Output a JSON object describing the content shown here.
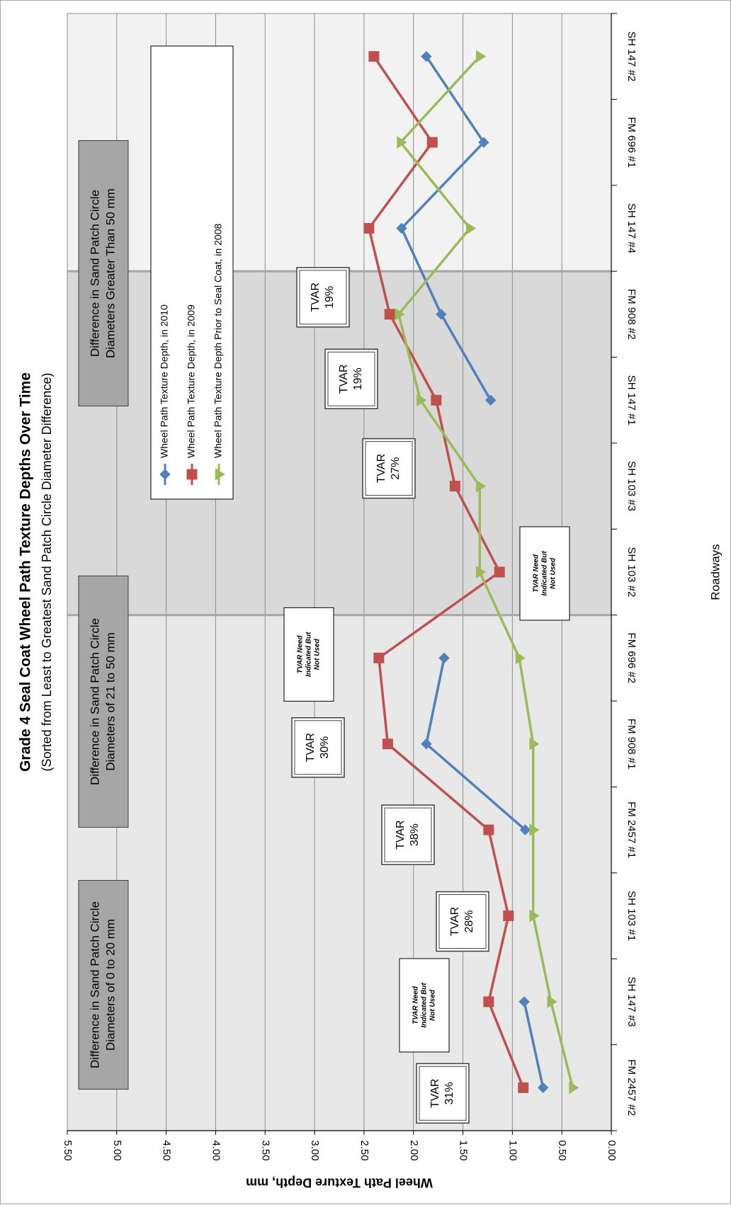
{
  "chart_data": {
    "type": "line",
    "title": "Grade 4 Seal Coat Wheel Path Texture Depths Over Time",
    "subtitle": "(Sorted from Least to Greatest Sand Patch Circle Diameter Difference)",
    "xlabel": "Roadways",
    "ylabel": "Wheel Path Texture Depth, mm",
    "ylim": [
      0,
      5.5
    ],
    "yticks": [
      "0.00",
      "0.50",
      "1.00",
      "1.50",
      "2.00",
      "2.50",
      "3.00",
      "3.50",
      "4.00",
      "4.50",
      "5.00",
      "5.50"
    ],
    "grid": true,
    "legend_position": "top-right",
    "orientation": "rotated 90 degrees clockwise",
    "categories": [
      "SH 147 #2",
      "FM 696 #1",
      "SH 147 #4",
      "FM 908 #2",
      "SH 147 #1",
      "SH 103 #3",
      "SH 103 #2",
      "FM 696 #2",
      "FM 908 #1",
      "FM 2457 #1",
      "SH 103 #1",
      "SH 147 #3",
      "FM 2457 #2"
    ],
    "series": [
      {
        "name": "Wheel Path Texture Depth, in 2010",
        "color": "#4f81bd",
        "marker": "diamond",
        "values": [
          1.87,
          1.29,
          2.12,
          1.72,
          1.22,
          null,
          null,
          1.69,
          1.87,
          0.87,
          null,
          0.88,
          0.69
        ]
      },
      {
        "name": "Wheel Path Texture Depth, in 2009",
        "color": "#c0504d",
        "marker": "square",
        "values": [
          2.4,
          1.81,
          2.45,
          2.24,
          1.77,
          1.58,
          1.13,
          2.35,
          2.26,
          1.24,
          1.04,
          1.24,
          0.89
        ]
      },
      {
        "name": "Wheel Path Texture Depth Prior to Seal Coat, in 2008",
        "color": "#9bbb59",
        "marker": "triangle",
        "values": [
          1.33,
          2.13,
          1.43,
          2.15,
          1.93,
          1.33,
          1.33,
          0.93,
          0.79,
          0.79,
          0.79,
          0.61,
          0.39
        ]
      }
    ],
    "zones": [
      {
        "label": "Difference in Sand Patch Circle Diameters of 0 to 20 mm",
        "from": 0,
        "to": 3,
        "fill": "#f2f2f2"
      },
      {
        "label": "Difference in Sand Patch Circle Diameters of 21 to 50 mm",
        "from": 3,
        "to": 7,
        "fill": "#d9d9d9"
      },
      {
        "label": "Difference in Sand Patch Circle Diameters Greater Than 50 mm",
        "from": 7,
        "to": 13,
        "fill": "#e8e8e8"
      }
    ],
    "annotations": [
      {
        "kind": "tvar",
        "category": "FM 908 #2",
        "line1": "TVAR",
        "line2": "19%"
      },
      {
        "kind": "tvar",
        "category": "SH 147 #1",
        "line1": "TVAR",
        "line2": "19%"
      },
      {
        "kind": "tvar",
        "category": "SH 103 #3",
        "line1": "TVAR",
        "line2": "27%"
      },
      {
        "kind": "note",
        "category": "SH 103 #2",
        "text": "TVAR Need Indicated But Not Used"
      },
      {
        "kind": "note",
        "category": "FM 696 #2",
        "text": "TVAR Need Indicated But Not Used"
      },
      {
        "kind": "tvar",
        "category": "FM 908 #1",
        "line1": "TVAR",
        "line2": "30%"
      },
      {
        "kind": "tvar",
        "category": "FM 2457 #1",
        "line1": "TVAR",
        "line2": "38%"
      },
      {
        "kind": "tvar",
        "category": "SH 103 #1",
        "line1": "TVAR",
        "line2": "28%"
      },
      {
        "kind": "note",
        "category": "SH 147 #3",
        "text": "TVAR Need Indicated But Not Used"
      },
      {
        "kind": "tvar",
        "category": "FM 2457 #2",
        "line1": "TVAR",
        "line2": "31%"
      }
    ]
  }
}
